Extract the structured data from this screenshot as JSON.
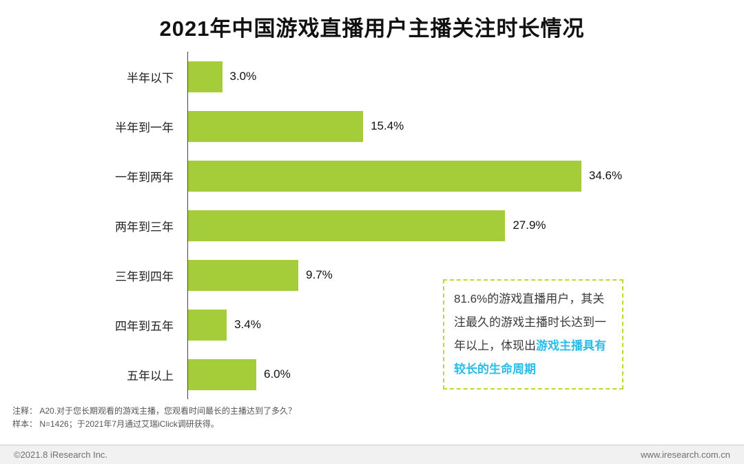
{
  "title": "2021年中国游戏直播用户主播关注时长情况",
  "colors": {
    "bar": "#a5cd39",
    "annotation_border": "#c3d82e",
    "highlight": "#2bbde9"
  },
  "chart_data": {
    "type": "bar",
    "orientation": "horizontal",
    "title": "2021年中国游戏直播用户主播关注时长情况",
    "categories": [
      "半年以下",
      "半年到一年",
      "一年到两年",
      "两年到三年",
      "三年到四年",
      "四年到五年",
      "五年以上"
    ],
    "values": [
      3.0,
      15.4,
      34.6,
      27.9,
      9.7,
      3.4,
      6.0
    ],
    "value_labels": [
      "3.0%",
      "15.4%",
      "34.6%",
      "27.9%",
      "9.7%",
      "3.4%",
      "6.0%"
    ],
    "xlim": [
      0,
      36
    ],
    "grid": false,
    "legend": false
  },
  "annotation": {
    "text_normal": "81.6%的游戏直播用户，其关注最久的游戏主播时长达到一年以上，体现出",
    "text_highlight": "游戏主播具有较长的生命周期"
  },
  "notes": {
    "line1": "注释：  A20.对于您长期观看的游戏主播，您观看时间最长的主播达到了多久？",
    "line2": "样本：  N=1426；于2021年7月通过艾瑞iClick调研获得。"
  },
  "footer": {
    "left": "©2021.8 iResearch Inc.",
    "right": "www.iresearch.com.cn"
  }
}
